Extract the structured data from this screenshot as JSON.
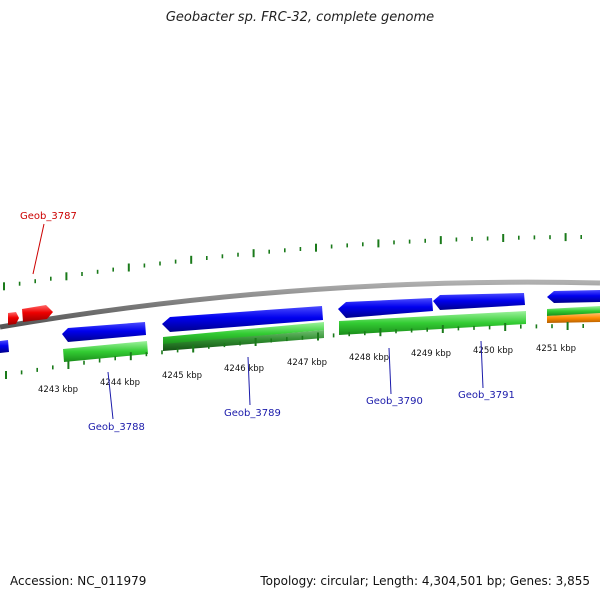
{
  "title": "Geobacter sp. FRC-32, complete genome",
  "footer": {
    "accession": "Accession: NC_011979",
    "summary": "Topology: circular; Length: 4,304,501 bp; Genes: 3,855"
  },
  "colors": {
    "forward_gene": "#ff0000",
    "reverse_gene": "#0000ff",
    "cds_green": "#33cc33",
    "cds_dark_green": "#1f8a1f",
    "cds_orange": "#ff8c00",
    "backbone": "#808080",
    "tick": "#1a7a1a",
    "label_red": "#cc0000",
    "label_blue": "#1a1aaa"
  },
  "ruler": {
    "labels": [
      "4243 kbp",
      "4244 kbp",
      "4245 kbp",
      "4246 kbp",
      "4247 kbp",
      "4248 kbp",
      "4249 kbp",
      "4250 kbp",
      "4251 kbp"
    ]
  },
  "gene_labels": [
    {
      "name": "Geob_3787",
      "color": "red"
    },
    {
      "name": "Geob_3788",
      "color": "blue"
    },
    {
      "name": "Geob_3789",
      "color": "blue"
    },
    {
      "name": "Geob_3790",
      "color": "blue"
    },
    {
      "name": "Geob_3791",
      "color": "blue"
    }
  ]
}
